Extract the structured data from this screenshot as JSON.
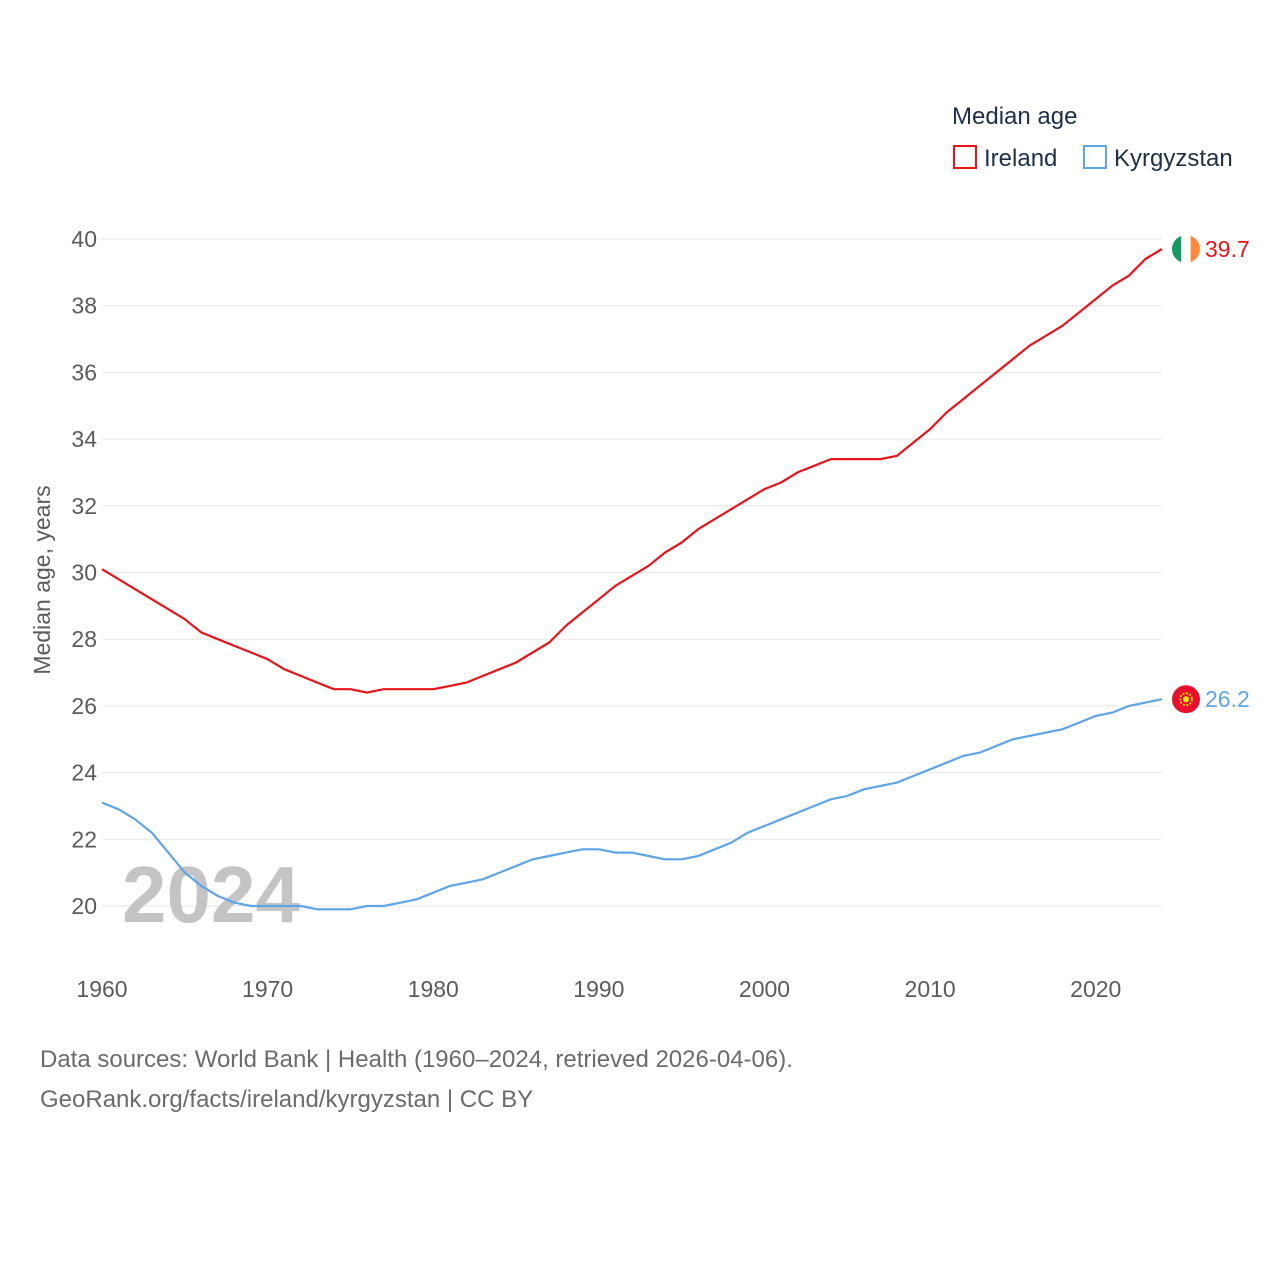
{
  "chart_data": {
    "type": "line",
    "title": "",
    "xlabel": "",
    "ylabel": "Median age, years",
    "xlim": [
      1960,
      2024
    ],
    "ylim": [
      20,
      40
    ],
    "xticks": [
      1960,
      1970,
      1980,
      1990,
      2000,
      2010,
      2020
    ],
    "yticks": [
      20,
      22,
      24,
      26,
      28,
      30,
      32,
      34,
      36,
      38,
      40
    ],
    "legend_title": "Median age",
    "legend_position": "top-right",
    "year_watermark": "2024",
    "series": [
      {
        "name": "Ireland",
        "color": "#e8141a",
        "end_label": "39.7",
        "flag_icon": "ireland-flag-icon",
        "x": [
          1960,
          1961,
          1962,
          1963,
          1964,
          1965,
          1966,
          1967,
          1968,
          1969,
          1970,
          1971,
          1972,
          1973,
          1974,
          1975,
          1976,
          1977,
          1978,
          1979,
          1980,
          1981,
          1982,
          1983,
          1984,
          1985,
          1986,
          1987,
          1988,
          1989,
          1990,
          1991,
          1992,
          1993,
          1994,
          1995,
          1996,
          1997,
          1998,
          1999,
          2000,
          2001,
          2002,
          2003,
          2004,
          2005,
          2006,
          2007,
          2008,
          2009,
          2010,
          2011,
          2012,
          2013,
          2014,
          2015,
          2016,
          2017,
          2018,
          2019,
          2020,
          2021,
          2022,
          2023,
          2024
        ],
        "values": [
          30.1,
          29.8,
          29.5,
          29.2,
          28.9,
          28.6,
          28.2,
          28.0,
          27.8,
          27.6,
          27.4,
          27.1,
          26.9,
          26.7,
          26.5,
          26.5,
          26.4,
          26.5,
          26.5,
          26.5,
          26.5,
          26.6,
          26.7,
          26.9,
          27.1,
          27.3,
          27.6,
          27.9,
          28.4,
          28.8,
          29.2,
          29.6,
          29.9,
          30.2,
          30.6,
          30.9,
          31.3,
          31.6,
          31.9,
          32.2,
          32.5,
          32.7,
          33.0,
          33.2,
          33.4,
          33.4,
          33.4,
          33.4,
          33.5,
          33.9,
          34.3,
          34.8,
          35.2,
          35.6,
          36.0,
          36.4,
          36.8,
          37.1,
          37.4,
          37.8,
          38.2,
          38.6,
          38.9,
          39.4,
          39.7
        ]
      },
      {
        "name": "Kyrgyzstan",
        "color": "#5fa4e6",
        "end_label": "26.2",
        "flag_icon": "kyrgyzstan-flag-icon",
        "x": [
          1960,
          1961,
          1962,
          1963,
          1964,
          1965,
          1966,
          1967,
          1968,
          1969,
          1970,
          1971,
          1972,
          1973,
          1974,
          1975,
          1976,
          1977,
          1978,
          1979,
          1980,
          1981,
          1982,
          1983,
          1984,
          1985,
          1986,
          1987,
          1988,
          1989,
          1990,
          1991,
          1992,
          1993,
          1994,
          1995,
          1996,
          1997,
          1998,
          1999,
          2000,
          2001,
          2002,
          2003,
          2004,
          2005,
          2006,
          2007,
          2008,
          2009,
          2010,
          2011,
          2012,
          2013,
          2014,
          2015,
          2016,
          2017,
          2018,
          2019,
          2020,
          2021,
          2022,
          2023,
          2024
        ],
        "values": [
          23.1,
          22.9,
          22.6,
          22.2,
          21.6,
          21.0,
          20.6,
          20.3,
          20.1,
          20.0,
          20.0,
          20.0,
          20.0,
          19.9,
          19.9,
          19.9,
          20.0,
          20.0,
          20.1,
          20.2,
          20.4,
          20.6,
          20.7,
          20.8,
          21.0,
          21.2,
          21.4,
          21.5,
          21.6,
          21.7,
          21.7,
          21.6,
          21.6,
          21.5,
          21.4,
          21.4,
          21.5,
          21.7,
          21.9,
          22.2,
          22.4,
          22.6,
          22.8,
          23.0,
          23.2,
          23.3,
          23.5,
          23.6,
          23.7,
          23.9,
          24.1,
          24.3,
          24.5,
          24.6,
          24.8,
          25.0,
          25.1,
          25.2,
          25.3,
          25.5,
          25.7,
          25.8,
          26.0,
          26.1,
          26.2
        ]
      }
    ]
  },
  "footer": {
    "line1": "Data sources: World Bank | Health (1960–2024, retrieved 2026-04-06).",
    "line2": "GeoRank.org/facts/ireland/kyrgyzstan | CC BY"
  }
}
